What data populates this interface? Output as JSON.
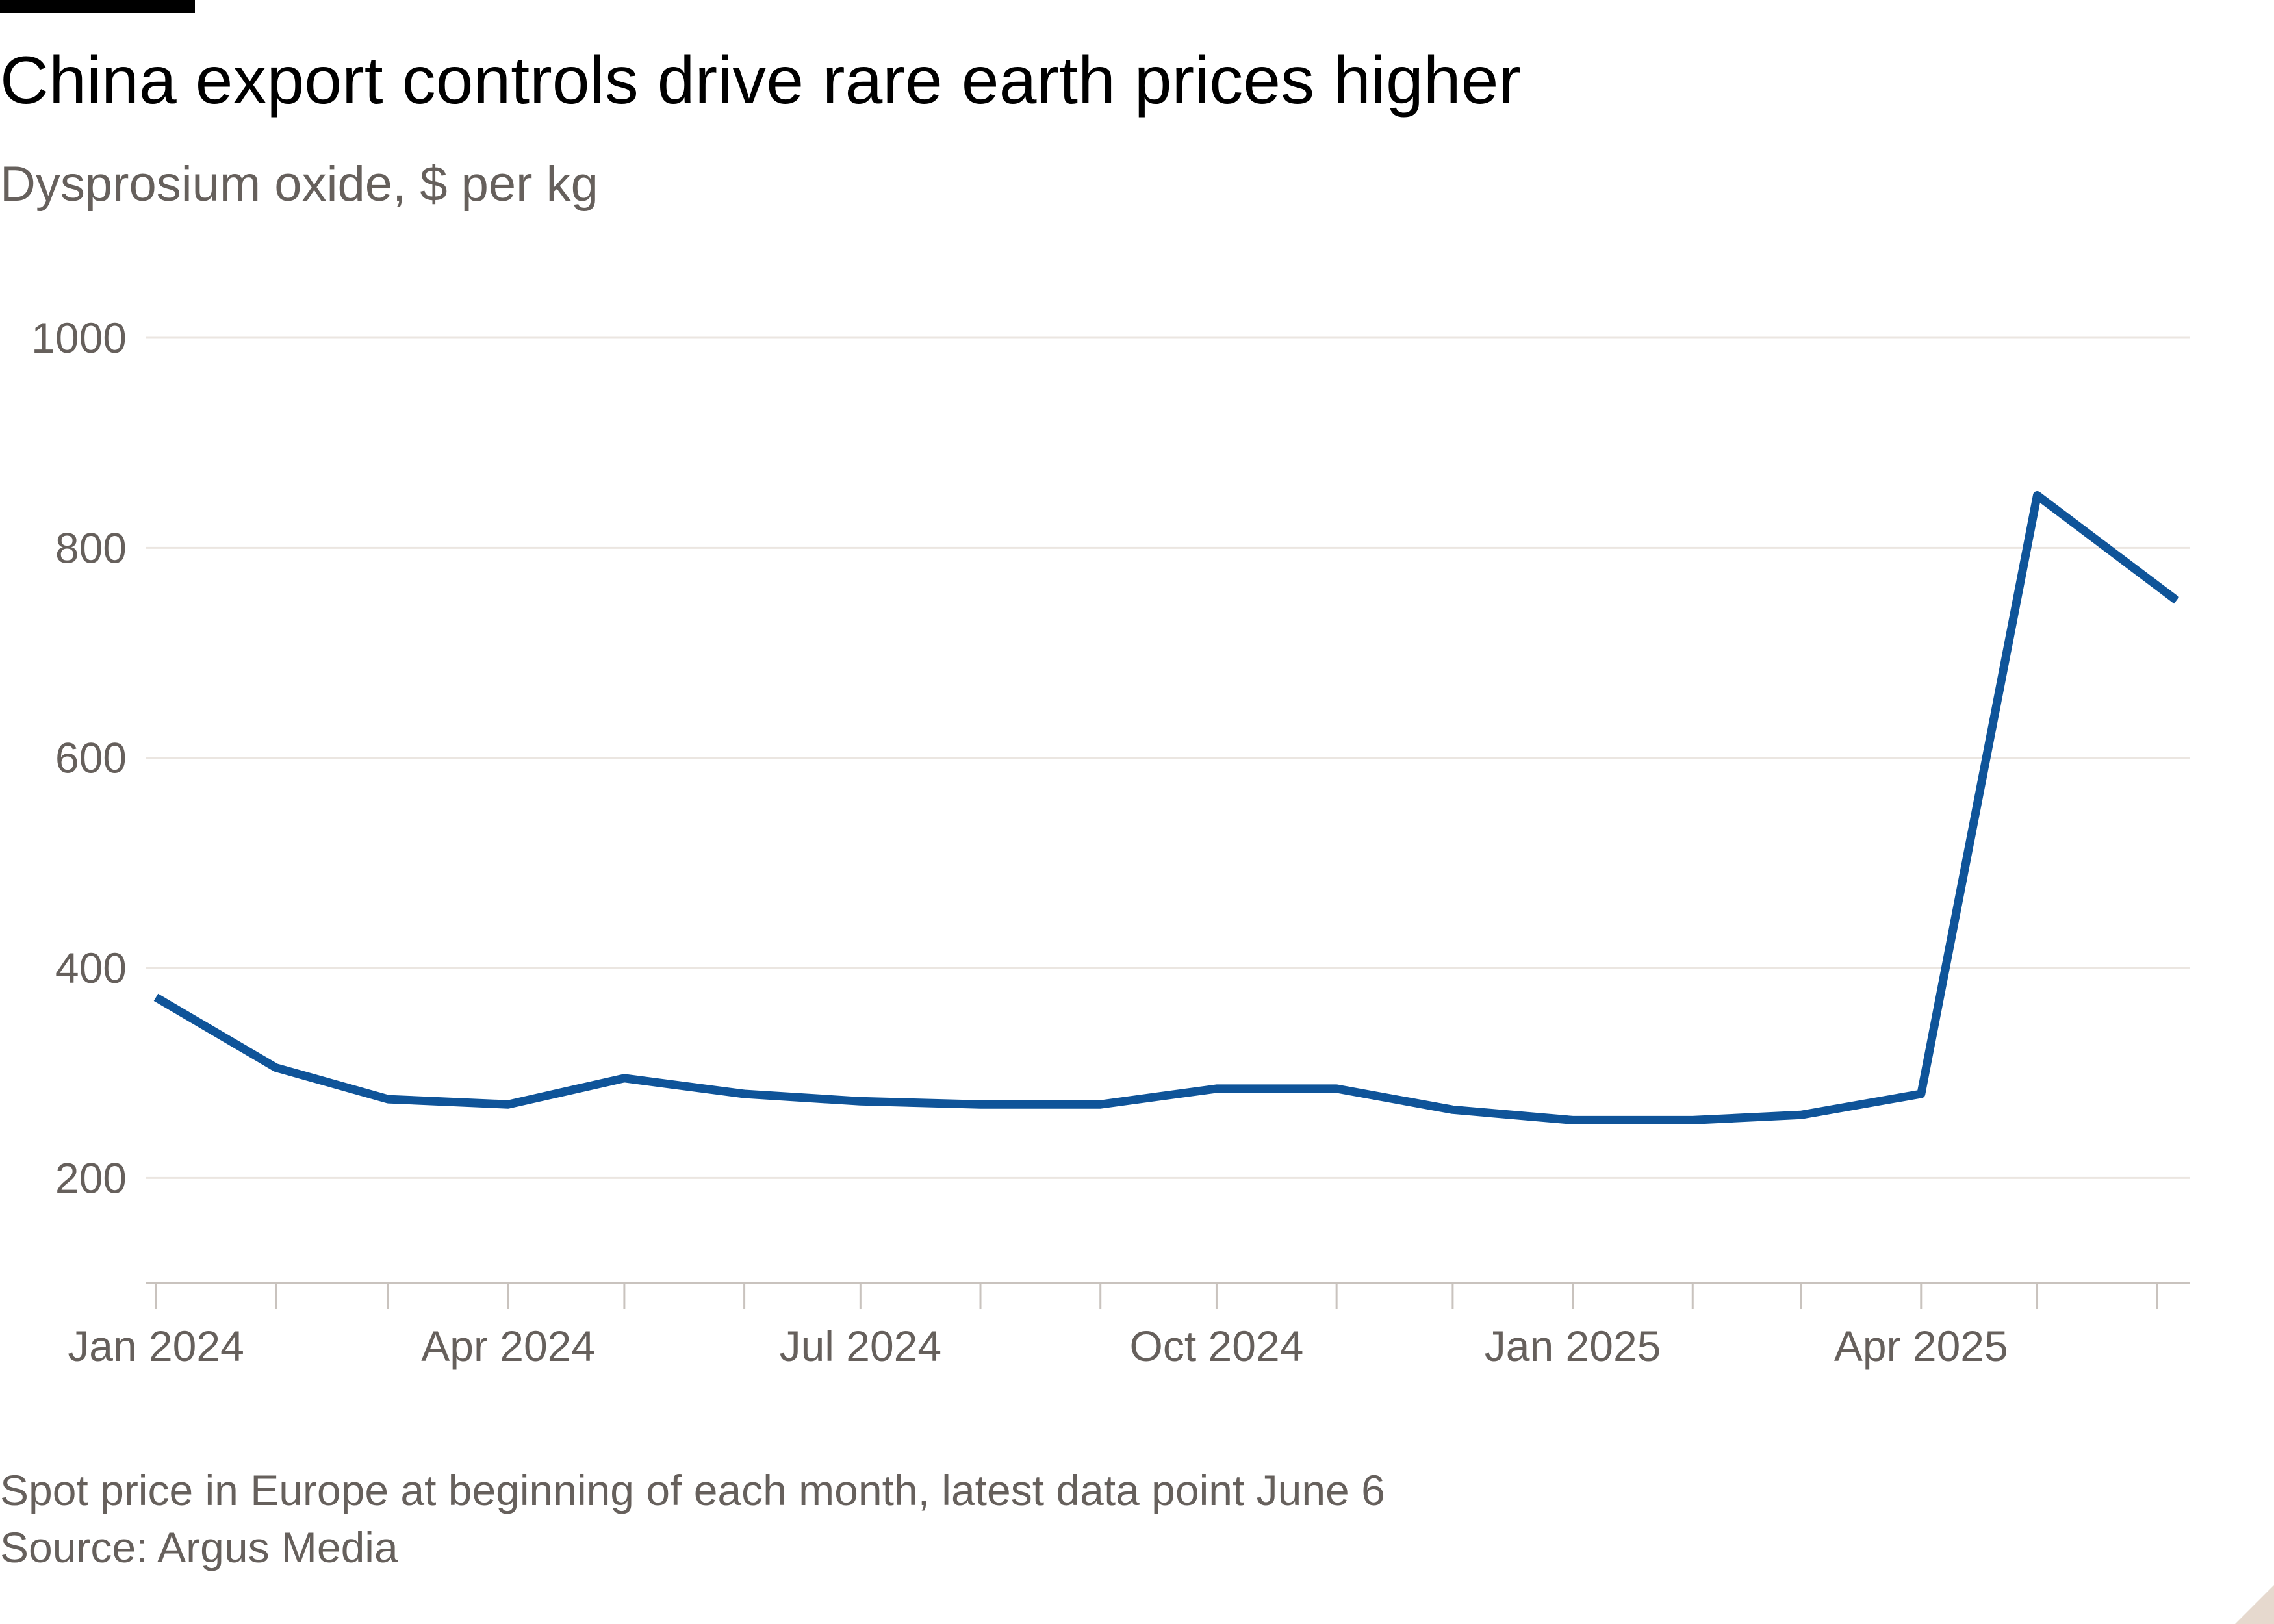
{
  "header": {
    "title": "China export controls drive rare earth prices higher",
    "subtitle": "Dysprosium oxide, $ per kg"
  },
  "footer": {
    "note": "Spot price in Europe at beginning of each month, latest data point June 6",
    "source": "Source: Argus Media"
  },
  "colors": {
    "series": "#0f5499",
    "grid": "#ebe6e1",
    "axis": "#c9c3be",
    "tick_text": "#66605c",
    "brand_bar": "#000000"
  },
  "chart_data": {
    "type": "line",
    "title": "China export controls drive rare earth prices higher",
    "subtitle": "Dysprosium oxide, $ per kg",
    "x": [
      "2024-01-01",
      "2024-02-01",
      "2024-03-01",
      "2024-04-01",
      "2024-05-01",
      "2024-06-01",
      "2024-07-01",
      "2024-08-01",
      "2024-09-01",
      "2024-10-01",
      "2024-11-01",
      "2024-12-01",
      "2025-01-01",
      "2025-02-01",
      "2025-03-01",
      "2025-04-01",
      "2025-05-01",
      "2025-06-06"
    ],
    "series": [
      {
        "values": [
          372,
          305,
          275,
          270,
          295,
          280,
          273,
          270,
          270,
          285,
          285,
          265,
          255,
          255,
          260,
          280,
          850,
          750
        ]
      }
    ],
    "ylim": [
      100,
      1000
    ],
    "yticks": [
      200,
      400,
      600,
      800,
      1000
    ],
    "xlim": [
      "2024-01-01",
      "2025-06-06"
    ],
    "x_tick_dates": [
      "2024-01-01",
      "2024-02-01",
      "2024-03-01",
      "2024-04-01",
      "2024-05-01",
      "2024-06-01",
      "2024-07-01",
      "2024-08-01",
      "2024-09-01",
      "2024-10-01",
      "2024-11-01",
      "2024-12-01",
      "2025-01-01",
      "2025-02-01",
      "2025-03-01",
      "2025-04-01",
      "2025-05-01",
      "2025-06-01"
    ],
    "x_tick_labels": [
      {
        "date": "2024-01-01",
        "label": "Jan 2024"
      },
      {
        "date": "2024-04-01",
        "label": "Apr 2024"
      },
      {
        "date": "2024-07-01",
        "label": "Jul 2024"
      },
      {
        "date": "2024-10-01",
        "label": "Oct 2024"
      },
      {
        "date": "2025-01-01",
        "label": "Jan 2025"
      },
      {
        "date": "2025-04-01",
        "label": "Apr 2025"
      }
    ],
    "grid": true,
    "legend": "none"
  }
}
